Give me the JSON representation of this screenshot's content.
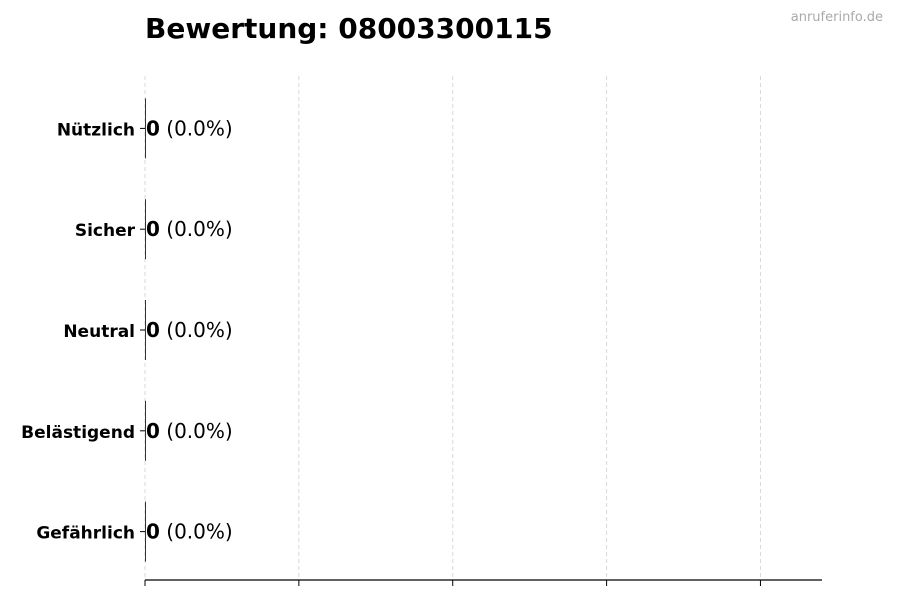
{
  "title": "Bewertung: 08003300115",
  "watermark": "anruferinfo.de",
  "chart_data": {
    "type": "bar",
    "orientation": "horizontal",
    "title": "Bewertung: 08003300115",
    "categories": [
      "Nützlich",
      "Sicher",
      "Neutral",
      "Belästigend",
      "Gefährlich"
    ],
    "values": [
      0,
      0,
      0,
      0,
      0
    ],
    "data_labels": [
      "0 (0.0%)",
      "0 (0.0%)",
      "0 (0.0%)",
      "0 (0.0%)",
      "0 (0.0%)"
    ],
    "label_counts": [
      "0",
      "0",
      "0",
      "0",
      "0"
    ],
    "label_percents": [
      "(0.0%)",
      "(0.0%)",
      "(0.0%)",
      "(0.0%)",
      "(0.0%)"
    ],
    "xticks": [
      0,
      1,
      2,
      3,
      4
    ],
    "xlim": [
      0,
      4.4
    ],
    "grid": "x dashed",
    "xlabel": "",
    "ylabel": "",
    "bar_color": "#000000",
    "grid_color": "#d9d9d9"
  }
}
